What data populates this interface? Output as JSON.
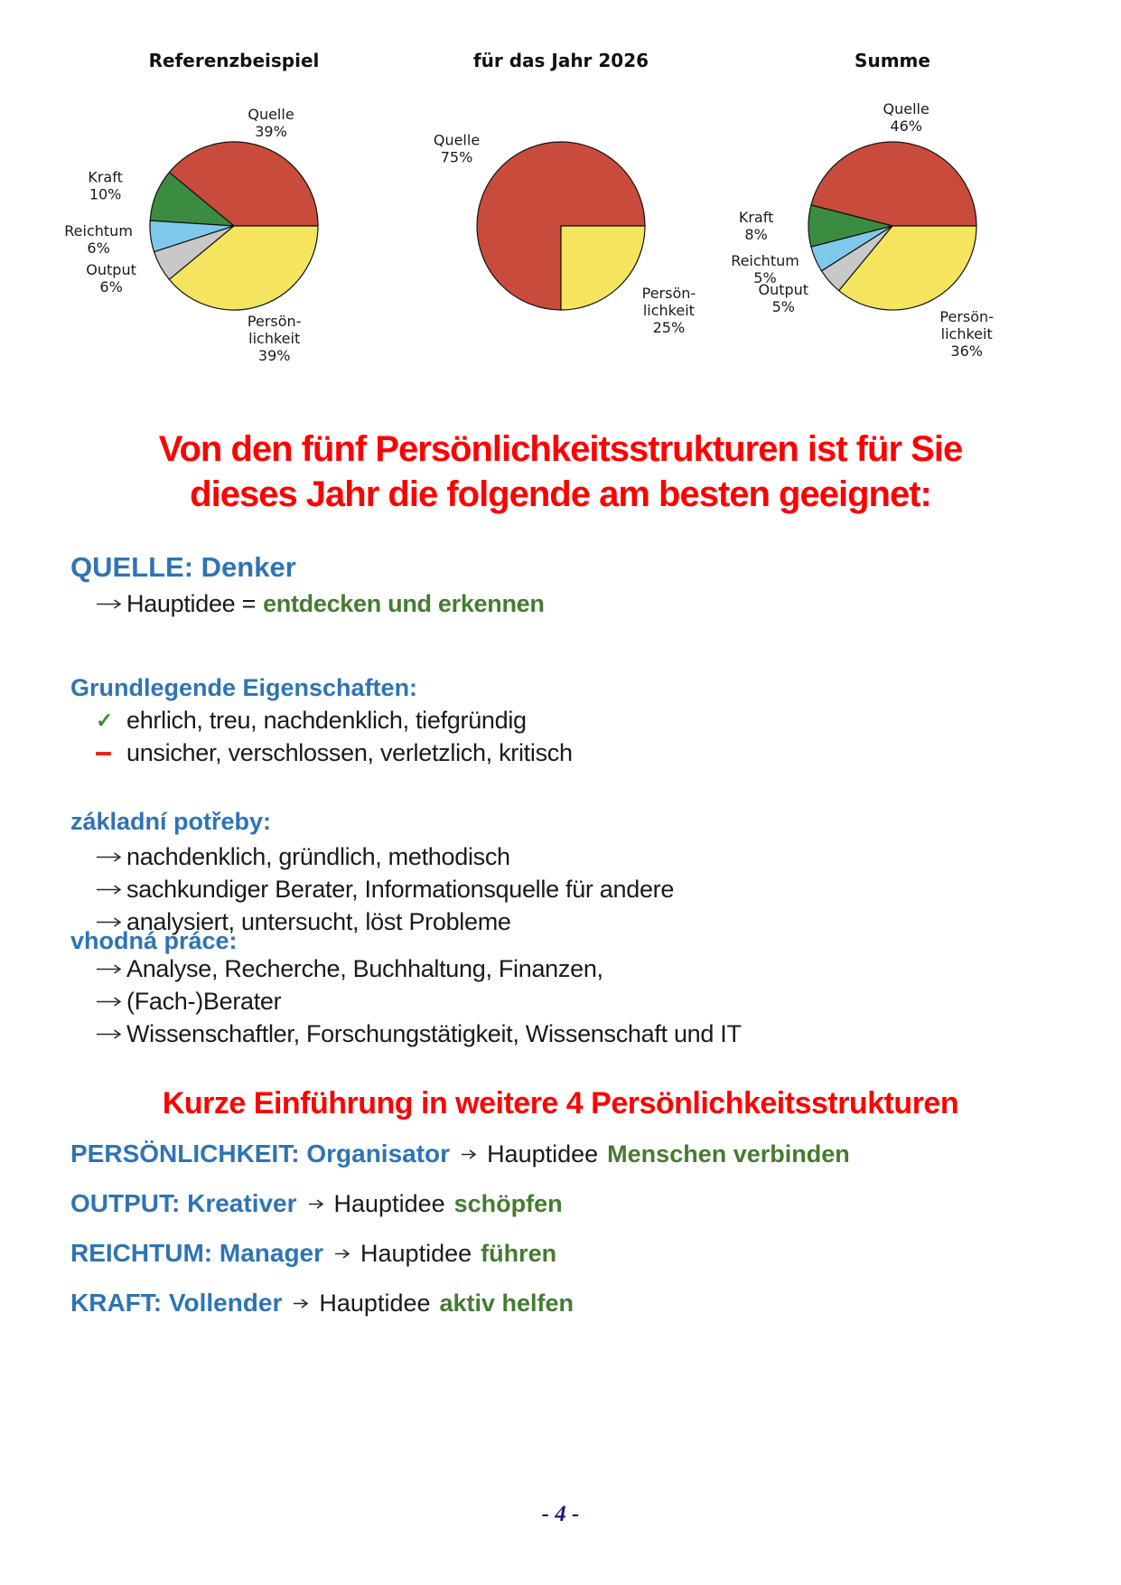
{
  "chart_data": [
    {
      "type": "pie",
      "title": "Referenzbeispiel",
      "labels": [
        "Quelle",
        "Kraft",
        "Reichtum",
        "Output",
        "Persönlichkeit"
      ],
      "label_lines": [
        [
          "Quelle"
        ],
        [
          "Kraft"
        ],
        [
          "Reichtum"
        ],
        [
          "Output"
        ],
        [
          "Persön-",
          "lichkeit"
        ]
      ],
      "values": [
        39,
        10,
        6,
        6,
        39
      ],
      "unit": "%",
      "colors": [
        "#c84b3c",
        "#3b8c40",
        "#7ec8ec",
        "#c8c8c8",
        "#f5e45e"
      ],
      "start_angle": 0,
      "direction": "counterclockwise",
      "legend": "none"
    },
    {
      "type": "pie",
      "title": "für das Jahr 2026",
      "labels": [
        "Quelle",
        "Persönlichkeit"
      ],
      "label_lines": [
        [
          "Quelle"
        ],
        [
          "Persön-",
          "lichkeit"
        ]
      ],
      "values": [
        75,
        25
      ],
      "unit": "%",
      "colors": [
        "#c84b3c",
        "#f5e45e"
      ],
      "start_angle": 0,
      "direction": "counterclockwise",
      "legend": "none"
    },
    {
      "type": "pie",
      "title": "Summe",
      "labels": [
        "Quelle",
        "Kraft",
        "Reichtum",
        "Output",
        "Persönlichkeit"
      ],
      "label_lines": [
        [
          "Quelle"
        ],
        [
          "Kraft"
        ],
        [
          "Reichtum"
        ],
        [
          "Output"
        ],
        [
          "Persön-",
          "lichkeit"
        ]
      ],
      "values": [
        46,
        8,
        5,
        5,
        36
      ],
      "unit": "%",
      "colors": [
        "#c84b3c",
        "#3b8c40",
        "#7ec8ec",
        "#c8c8c8",
        "#f5e45e"
      ],
      "start_angle": 0,
      "direction": "counterclockwise",
      "legend": "none"
    }
  ],
  "headline": {
    "line1": "Von den fünf Persönlichkeitsstrukturen ist für Sie",
    "line2": "dieses Jahr die folgende am besten geeignet:"
  },
  "quelle_section": {
    "title": "QUELLE: Denker",
    "hauptidee_prefix": "Hauptidee =",
    "hauptidee_value": "entdecken und erkennen"
  },
  "eigenschaften": {
    "heading": "Grundlegende Eigenschaften:",
    "positive": "ehrlich, treu, nachdenklich, tiefgründig",
    "negative": "unsicher, verschlossen, verletzlich, kritisch"
  },
  "potreby": {
    "heading": "základní potřeby:",
    "items": [
      "nachdenklich, gründlich, methodisch",
      "sachkundiger Berater, Informationsquelle für andere",
      "analysiert, untersucht, löst Probleme"
    ]
  },
  "prace": {
    "heading": "vhodná práce:",
    "items": [
      "Analyse, Recherche, Buchhaltung, Finanzen,",
      "(Fach-)Berater",
      "Wissenschaftler, Forschungstätigkeit, Wissenschaft und IT"
    ]
  },
  "intro": {
    "heading": "Kurze Einführung in weitere 4 Persönlichkeitsstrukturen",
    "lines": [
      {
        "label": "PERSÖNLICHKEIT: Organisator",
        "middle": "Hauptidee",
        "value": "Menschen verbinden"
      },
      {
        "label": "OUTPUT: Kreativer",
        "middle": "Hauptidee",
        "value": "schöpfen"
      },
      {
        "label": "REICHTUM: Manager",
        "middle": "Hauptidee",
        "value": "führen"
      },
      {
        "label": "KRAFT: Vollender",
        "middle": "Hauptidee",
        "value": "aktiv helfen"
      }
    ]
  },
  "icons": {
    "check_glyph": "✓"
  },
  "colors": {
    "heading_red": "#ff0000",
    "heading_blue": "#2e74b5",
    "accent_green": "#457b31",
    "check_green": "#3e8e38",
    "minus_red": "#e8251f",
    "footer_navy": "#1b1b70",
    "pie_red": "#c84b3c",
    "pie_green": "#3b8c40",
    "pie_blue": "#7ec8ec",
    "pie_gray": "#c8c8c8",
    "pie_yellow": "#f5e45e"
  },
  "page": {
    "footer_page_number": "- 4 -"
  }
}
